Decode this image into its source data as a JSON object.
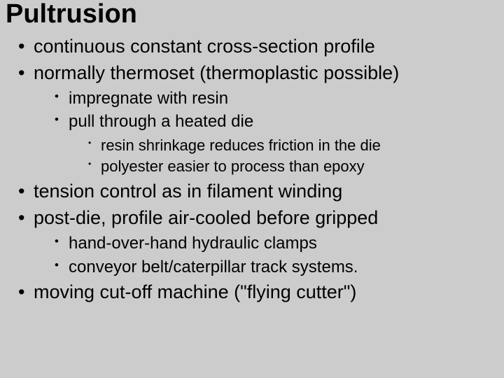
{
  "title_fontsize": 38,
  "l1_fontsize": 27,
  "l2_fontsize": 24,
  "l3_fontsize": 22,
  "background_color": "#cccccc",
  "text_color": "#000000",
  "font_family": "Verdana, Geneva, sans-serif",
  "title": "Pultrusion",
  "bullets": {
    "b0": "continuous constant cross-section profile",
    "b1": "normally thermoset (thermoplastic possible)",
    "b1_0": "impregnate with resin",
    "b1_1": "pull through a heated die",
    "b1_1_0": "resin shrinkage reduces friction in the die",
    "b1_1_1": "polyester easier to process than epoxy",
    "b2": "tension control as in filament winding",
    "b3": "post-die, profile air-cooled before gripped",
    "b3_0": "hand-over-hand hydraulic clamps",
    "b3_1": "conveyor belt/caterpillar track systems.",
    "b4": "moving cut-off machine (\"flying cutter\")"
  }
}
